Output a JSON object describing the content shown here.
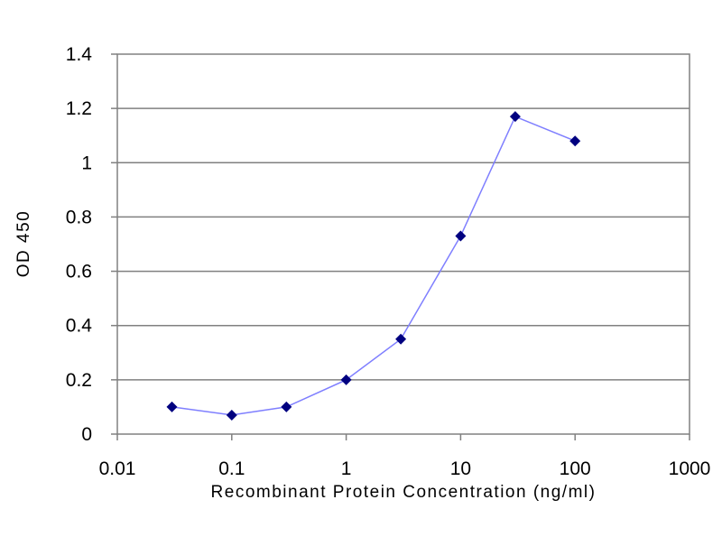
{
  "chart_data": {
    "type": "line",
    "title": "",
    "xlabel": "Recombinant Protein Concentration (ng/ml)",
    "ylabel": "OD 450",
    "x_scale": "log",
    "xlim": [
      0.01,
      1000
    ],
    "ylim": [
      0,
      1.4
    ],
    "x_ticks": [
      0.01,
      0.1,
      1,
      10,
      100,
      1000
    ],
    "x_tick_labels": [
      "0.01",
      "0.1",
      "1",
      "10",
      "100",
      "1000"
    ],
    "y_ticks": [
      0,
      0.2,
      0.4,
      0.6,
      0.8,
      1,
      1.2,
      1.4
    ],
    "y_tick_labels": [
      "0",
      "0.2",
      "0.4",
      "0.6",
      "0.8",
      "1",
      "1.2",
      "1.4"
    ],
    "grid": "horizontal",
    "legend": "none",
    "series": [
      {
        "x": [
          0.03,
          0.1,
          0.3,
          1,
          3,
          10,
          30,
          100
        ],
        "y": [
          0.1,
          0.07,
          0.1,
          0.2,
          0.35,
          0.73,
          1.17,
          1.08
        ],
        "marker": "diamond",
        "line_color": "#7f7fff",
        "marker_color": "#000080"
      }
    ]
  }
}
